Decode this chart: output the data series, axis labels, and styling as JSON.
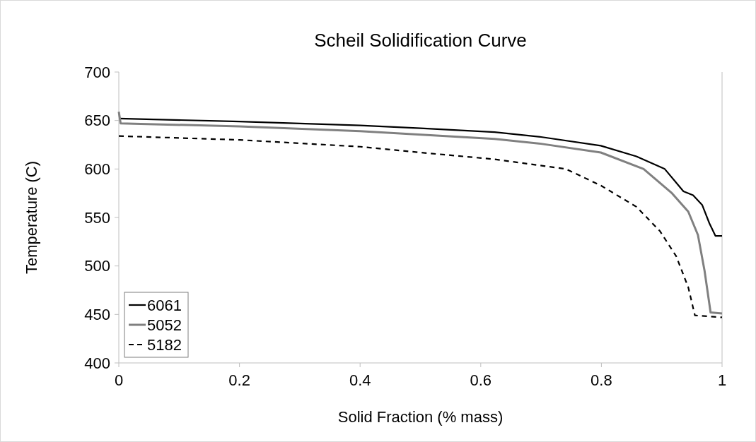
{
  "chart_data": {
    "type": "line",
    "title": "Scheil Solidification Curve",
    "xlabel": "Solid Fraction (% mass)",
    "ylabel": "Temperature (C)",
    "xlim": [
      0,
      1
    ],
    "xticks": [
      0,
      0.2,
      0.4,
      0.6,
      0.8,
      1
    ],
    "ylim": [
      400,
      700
    ],
    "yticks": [
      400,
      450,
      500,
      550,
      600,
      650,
      700
    ],
    "grid": false,
    "legend": "bottom left",
    "marker": "none",
    "series": [
      {
        "name": "6061",
        "color": "#000000",
        "line_style": "solid",
        "x": [
          0,
          0.2,
          0.4,
          0.5,
          0.623,
          0.7,
          0.799,
          0.858,
          0.905,
          0.936,
          0.952,
          0.967,
          0.979,
          0.989,
          1
        ],
        "values": [
          652,
          649,
          645,
          642,
          638,
          633,
          624,
          613,
          600,
          577,
          573,
          563,
          544,
          531,
          531
        ]
      },
      {
        "name": "5052",
        "color": "#808080",
        "line_style": "solid",
        "x": [
          0,
          0.003,
          0.2,
          0.4,
          0.623,
          0.7,
          0.799,
          0.87,
          0.917,
          0.944,
          0.96,
          0.971,
          0.981,
          1
        ],
        "values": [
          659,
          647,
          644,
          639,
          631,
          626,
          617,
          600,
          575,
          556,
          532,
          495,
          452,
          451
        ]
      },
      {
        "name": "5182",
        "color": "#000000",
        "line_style": "dashed",
        "x": [
          0,
          0.2,
          0.4,
          0.5,
          0.623,
          0.741,
          0.799,
          0.858,
          0.897,
          0.924,
          0.944,
          0.955,
          1
        ],
        "values": [
          634,
          630,
          623,
          617,
          610,
          600,
          583,
          561,
          536,
          510,
          478,
          449,
          447
        ]
      }
    ]
  }
}
